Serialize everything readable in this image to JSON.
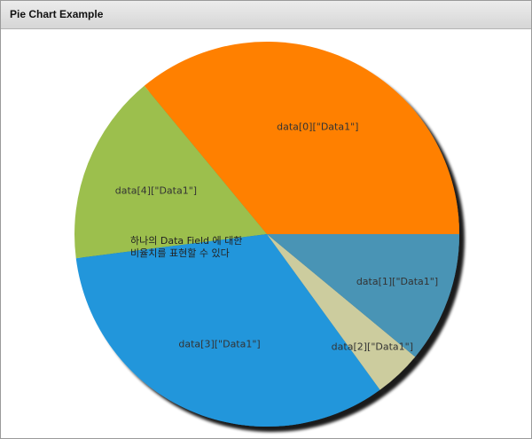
{
  "window": {
    "title": "Pie Chart Example"
  },
  "chart_data": {
    "type": "pie",
    "categories": [
      "data[0][\"Data1\"]",
      "data[1][\"Data1\"]",
      "data[2][\"Data1\"]",
      "data[3][\"Data1\"]",
      "data[4][\"Data1\"]"
    ],
    "values": [
      36,
      11,
      4,
      33,
      16
    ],
    "colors": [
      "#ff8000",
      "#4a94b5",
      "#cccc9e",
      "#2196db",
      "#9cbf4d"
    ],
    "annotations": [
      "하나의 Data Field 에 대한",
      "비율치를 표현할 수 있다"
    ],
    "legend": "none",
    "grid": false
  }
}
